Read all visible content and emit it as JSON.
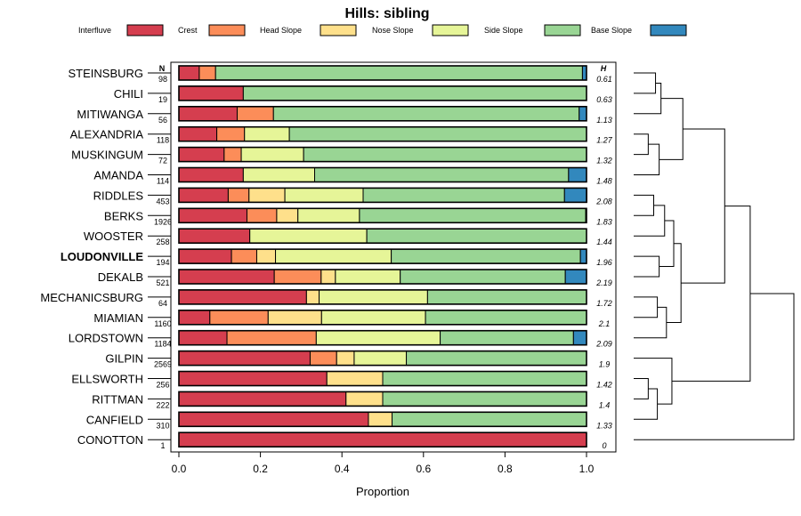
{
  "chart_data": {
    "type": "bar",
    "orientation": "horizontal",
    "stacked": true,
    "title": "Hills: sibling",
    "xlabel": "Proportion",
    "ylabel": "",
    "xlim": [
      0,
      1
    ],
    "xticks": [
      "0.0",
      "0.2",
      "0.4",
      "0.6",
      "0.8",
      "1.0"
    ],
    "n_header": "N",
    "h_header": "H",
    "legend_position": "top",
    "series": [
      {
        "name": "Interfluve",
        "color": "#d53e4f"
      },
      {
        "name": "Crest",
        "color": "#fc8d59"
      },
      {
        "name": "Head Slope",
        "color": "#fee08b"
      },
      {
        "name": "Nose Slope",
        "color": "#e6f598"
      },
      {
        "name": "Side Slope",
        "color": "#99d594"
      },
      {
        "name": "Base Slope",
        "color": "#3288bd"
      }
    ],
    "rows": [
      {
        "label": "STEINSBURG",
        "n": "98",
        "h": "0.61",
        "bold": false,
        "values": [
          0.05,
          0.04,
          0.0,
          0.0,
          0.9,
          0.01
        ]
      },
      {
        "label": "CHILI",
        "n": "19",
        "h": "0.63",
        "bold": false,
        "values": [
          0.158,
          0.0,
          0.0,
          0.0,
          0.842,
          0.0
        ]
      },
      {
        "label": "MITIWANGA",
        "n": "56",
        "h": "1.13",
        "bold": false,
        "values": [
          0.143,
          0.089,
          0.0,
          0.0,
          0.75,
          0.018
        ]
      },
      {
        "label": "ALEXANDRIA",
        "n": "118",
        "h": "1.27",
        "bold": false,
        "values": [
          0.093,
          0.068,
          0.0,
          0.11,
          0.729,
          0.0
        ]
      },
      {
        "label": "MUSKINGUM",
        "n": "72",
        "h": "1.32",
        "bold": false,
        "values": [
          0.111,
          0.042,
          0.0,
          0.153,
          0.694,
          0.0
        ]
      },
      {
        "label": "AMANDA",
        "n": "114",
        "h": "1.48",
        "bold": false,
        "values": [
          0.158,
          0.0,
          0.0,
          0.175,
          0.623,
          0.044
        ]
      },
      {
        "label": "RIDDLES",
        "n": "453",
        "h": "2.08",
        "bold": false,
        "values": [
          0.121,
          0.051,
          0.088,
          0.192,
          0.494,
          0.055
        ]
      },
      {
        "label": "BERKS",
        "n": "1926",
        "h": "1.83",
        "bold": false,
        "values": [
          0.167,
          0.073,
          0.052,
          0.151,
          0.555,
          0.002
        ]
      },
      {
        "label": "WOOSTER",
        "n": "258",
        "h": "1.44",
        "bold": false,
        "values": [
          0.174,
          0.0,
          0.0,
          0.287,
          0.539,
          0.0
        ]
      },
      {
        "label": "LOUDONVILLE",
        "n": "194",
        "h": "1.96",
        "bold": true,
        "values": [
          0.129,
          0.062,
          0.046,
          0.284,
          0.464,
          0.015
        ]
      },
      {
        "label": "DEKALB",
        "n": "521",
        "h": "2.19",
        "bold": false,
        "values": [
          0.234,
          0.115,
          0.035,
          0.159,
          0.405,
          0.052
        ]
      },
      {
        "label": "MECHANICSBURG",
        "n": "64",
        "h": "1.72",
        "bold": false,
        "values": [
          0.313,
          0.0,
          0.031,
          0.266,
          0.39,
          0.0
        ]
      },
      {
        "label": "MIAMIAN",
        "n": "1160",
        "h": "2.1",
        "bold": false,
        "values": [
          0.076,
          0.143,
          0.131,
          0.255,
          0.395,
          0.0
        ]
      },
      {
        "label": "LORDSTOWN",
        "n": "1184",
        "h": "2.09",
        "bold": false,
        "values": [
          0.118,
          0.219,
          0.0,
          0.304,
          0.327,
          0.032
        ]
      },
      {
        "label": "GILPIN",
        "n": "2569",
        "h": "1.9",
        "bold": false,
        "values": [
          0.322,
          0.065,
          0.043,
          0.128,
          0.442,
          0.0
        ]
      },
      {
        "label": "ELLSWORTH",
        "n": "256",
        "h": "1.42",
        "bold": false,
        "values": [
          0.363,
          0.0,
          0.137,
          0.0,
          0.5,
          0.0
        ]
      },
      {
        "label": "RITTMAN",
        "n": "222",
        "h": "1.4",
        "bold": false,
        "values": [
          0.41,
          0.0,
          0.09,
          0.0,
          0.5,
          0.0
        ]
      },
      {
        "label": "CANFIELD",
        "n": "310",
        "h": "1.33",
        "bold": false,
        "values": [
          0.465,
          0.0,
          0.058,
          0.0,
          0.477,
          0.0
        ]
      },
      {
        "label": "CONOTTON",
        "n": "1",
        "h": "0",
        "bold": false,
        "values": [
          1.0,
          0.0,
          0.0,
          0.0,
          0.0,
          0.0
        ]
      }
    ],
    "dendrogram": {
      "merges": [
        {
          "a": 0,
          "b": 1,
          "height": 0.6
        },
        {
          "a": "m0",
          "b": 2,
          "height": 0.75
        },
        {
          "a": 3,
          "b": 4,
          "height": 0.4
        },
        {
          "a": "m2",
          "b": 5,
          "height": 0.7
        },
        {
          "a": "m1",
          "b": "m3",
          "height": 1.35
        },
        {
          "a": 6,
          "b": 7,
          "height": 0.55
        },
        {
          "a": "m5",
          "b": 8,
          "height": 0.85
        },
        {
          "a": 9,
          "b": 10,
          "height": 0.7
        },
        {
          "a": "m6",
          "b": "m7",
          "height": 1.1
        },
        {
          "a": 11,
          "b": 12,
          "height": 0.65
        },
        {
          "a": "m9",
          "b": 13,
          "height": 0.9
        },
        {
          "a": "m8",
          "b": "m10",
          "height": 1.3
        },
        {
          "a": "m4",
          "b": "m11",
          "height": 2.5
        },
        {
          "a": 15,
          "b": 16,
          "height": 0.4
        },
        {
          "a": "m13",
          "b": 17,
          "height": 0.65
        },
        {
          "a": 14,
          "b": "m14",
          "height": 1.05
        },
        {
          "a": "m12",
          "b": "m15",
          "height": 3.2
        },
        {
          "a": "m16",
          "b": 18,
          "height": 4.4
        }
      ],
      "max_height": 4.4
    }
  }
}
